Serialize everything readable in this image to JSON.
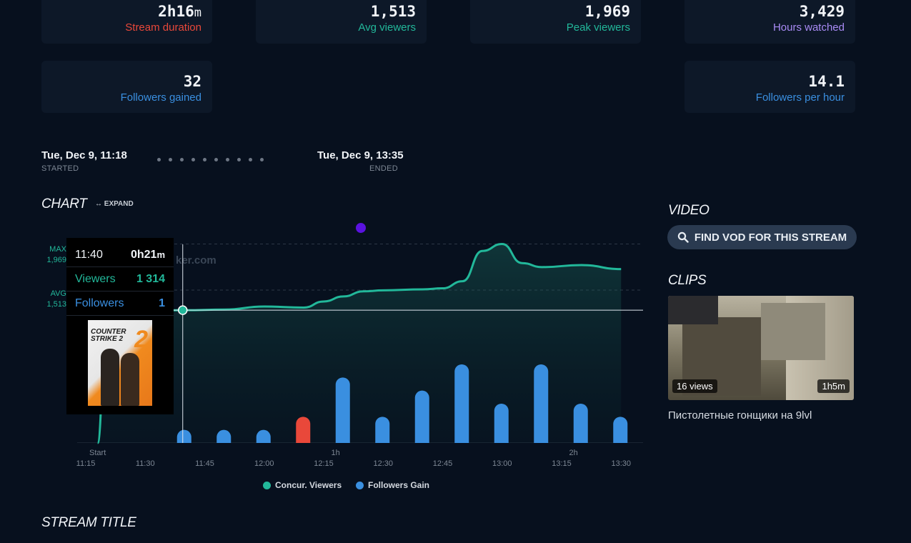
{
  "stats": [
    {
      "value": "2h16",
      "unit": "m",
      "label": "Stream duration",
      "color": "#e9483a"
    },
    {
      "value": "1,513",
      "unit": "",
      "label": "Avg viewers",
      "color": "#22b89a"
    },
    {
      "value": "1,969",
      "unit": "",
      "label": "Peak viewers",
      "color": "#22b89a"
    },
    {
      "value": "3,429",
      "unit": "",
      "label": "Hours watched",
      "color": "#a98bf5"
    },
    {
      "value": "32",
      "unit": "",
      "label": "Followers gained",
      "color": "#3a8fe0"
    },
    {
      "value": "14.1",
      "unit": "",
      "label": "Followers per hour",
      "color": "#3a8fe0"
    }
  ],
  "timeline": {
    "started_time": "Tue, Dec 9, 11:18",
    "started_label": "STARTED",
    "ended_time": "Tue, Dec 9, 13:35",
    "ended_label": "ENDED"
  },
  "chart_section": {
    "title": "CHART",
    "expand_label": "EXPAND"
  },
  "chart_data": {
    "type": "line",
    "x_tick_labels": [
      "11:15",
      "11:30",
      "11:45",
      "12:00",
      "12:15",
      "12:30",
      "12:45",
      "13:00",
      "13:15",
      "13:30"
    ],
    "elapsed_labels": [
      "Start",
      "1h",
      "2h"
    ],
    "max_label": "MAX",
    "max_value": "1,969",
    "avg_label": "AVG",
    "avg_value": "1,513",
    "viewer_ylim": [
      0,
      2050
    ],
    "series": [
      {
        "name": "Concur. Viewers",
        "color": "#22b89a",
        "x": [
          "11:18",
          "11:20",
          "11:25",
          "11:30",
          "11:40",
          "11:50",
          "12:00",
          "12:10",
          "12:15",
          "12:20",
          "12:25",
          "12:30",
          "12:40",
          "12:45",
          "12:50",
          "12:55",
          "13:00",
          "13:05",
          "13:10",
          "13:20",
          "13:30"
        ],
        "values": [
          0,
          1020,
          1300,
          1310,
          1314,
          1320,
          1350,
          1340,
          1400,
          1450,
          1500,
          1510,
          1520,
          1530,
          1600,
          1900,
          1969,
          1780,
          1740,
          1760,
          1720
        ]
      },
      {
        "name": "Followers Gain",
        "color": "#3a8fe0",
        "highlight_color": "#e9483a",
        "x": [
          "11:40",
          "11:50",
          "12:00",
          "12:10",
          "12:20",
          "12:30",
          "12:40",
          "12:50",
          "13:00",
          "13:10",
          "13:20",
          "13:30"
        ],
        "values": [
          1,
          1,
          1,
          -2,
          5,
          2,
          4,
          6,
          3,
          6,
          3,
          2
        ]
      }
    ],
    "tooltip": {
      "time": "11:40",
      "elapsed": "0h21",
      "elapsed_unit": "m",
      "viewers_label": "Viewers",
      "viewers_value": "1 314",
      "followers_label": "Followers",
      "followers_value": "1",
      "game": "COUNTER STRIKE 2"
    },
    "watermark": "ker.com",
    "legend": [
      "Concur. Viewers",
      "Followers Gain"
    ]
  },
  "video_section": {
    "title": "VIDEO",
    "button_label": "FIND VOD FOR THIS STREAM"
  },
  "clips_section": {
    "title": "CLIPS",
    "clip": {
      "views": "16 views",
      "duration": "1h5m",
      "title": "Пистолетные гонщики на 9lvl"
    }
  },
  "stream_title_section": {
    "title": "STREAM TITLE"
  }
}
